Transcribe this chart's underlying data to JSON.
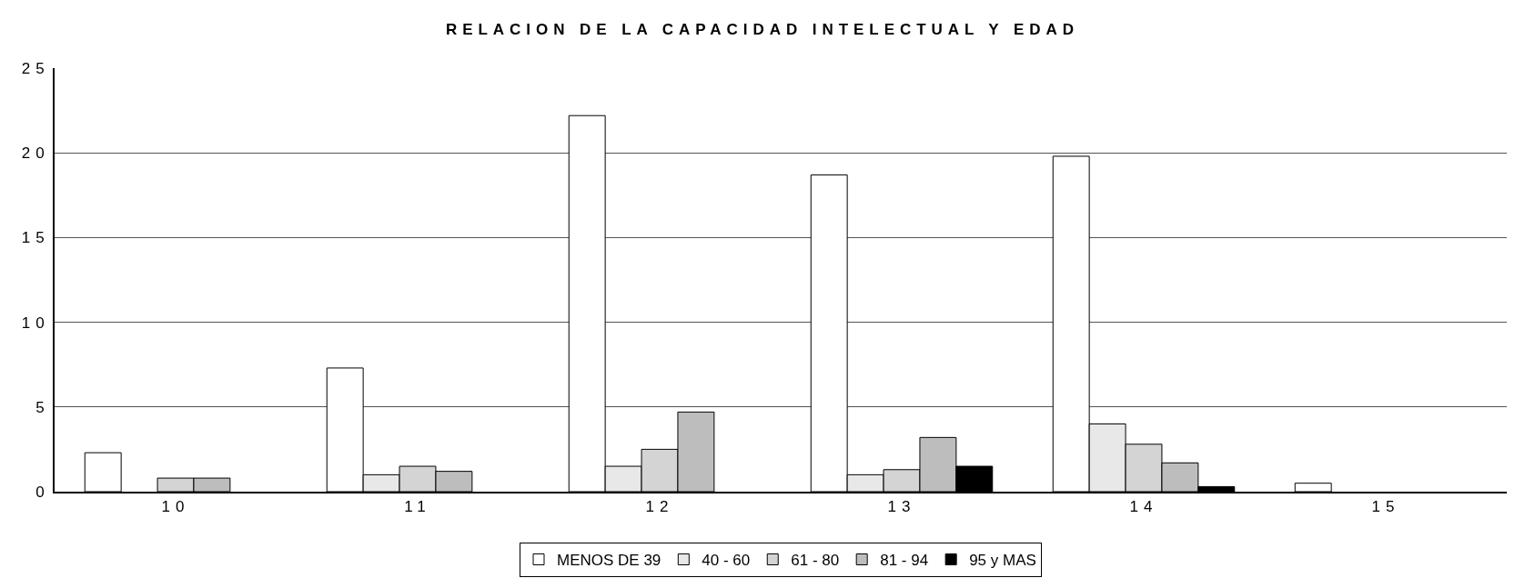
{
  "chart_data": {
    "type": "bar",
    "title": "RELACION DE LA CAPACIDAD INTELECTUAL Y EDAD",
    "categories": [
      "10",
      "11",
      "12",
      "13",
      "14",
      "15"
    ],
    "series": [
      {
        "name": "MENOS DE 39",
        "color": "#ffffff",
        "values": [
          2.3,
          7.3,
          22.2,
          18.7,
          19.8,
          0.5
        ]
      },
      {
        "name": "40 - 60",
        "color": "#e8e8e8",
        "values": [
          null,
          1.0,
          1.5,
          1.0,
          4.0,
          null
        ]
      },
      {
        "name": "61 - 80",
        "color": "#d4d4d4",
        "values": [
          0.8,
          1.5,
          2.5,
          1.3,
          2.8,
          null
        ]
      },
      {
        "name": "81 - 94",
        "color": "#bdbdbd",
        "values": [
          0.8,
          1.2,
          4.7,
          3.2,
          1.7,
          null
        ]
      },
      {
        "name": "95 y MAS",
        "color": "#000000",
        "values": [
          null,
          null,
          null,
          1.5,
          0.3,
          null
        ]
      }
    ],
    "ylim": [
      0,
      25
    ],
    "yticks": [
      0,
      5,
      10,
      15,
      20,
      25
    ],
    "grid": "y",
    "legend": "bottom"
  }
}
